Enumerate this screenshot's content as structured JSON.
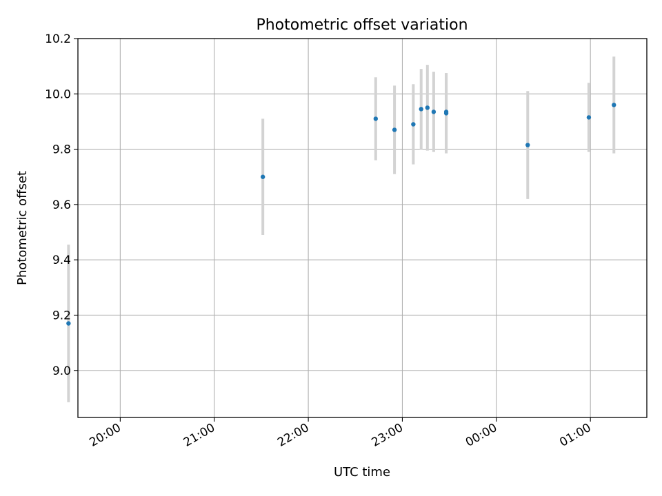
{
  "chart_data": {
    "type": "scatter",
    "title": "Photometric offset variation",
    "xlabel": "UTC time",
    "ylabel": "Photometric offset",
    "xlim": [
      "19:33",
      "01:36"
    ],
    "ylim": [
      8.83,
      10.2
    ],
    "x_ticks": [
      "20:00",
      "21:00",
      "22:00",
      "23:00",
      "00:00",
      "01:00"
    ],
    "y_ticks": [
      "9.0",
      "9.2",
      "9.4",
      "9.6",
      "9.8",
      "10.0",
      "10.2"
    ],
    "grid": true,
    "colors": {
      "point": "#1f77b4",
      "errorbar": "#d3d3d3",
      "grid": "#b0b0b0"
    },
    "points": [
      {
        "x": "19:27",
        "y": 9.17,
        "err": 0.285
      },
      {
        "x": "21:31",
        "y": 9.7,
        "err": 0.21
      },
      {
        "x": "22:43",
        "y": 9.91,
        "err": 0.15
      },
      {
        "x": "22:55",
        "y": 9.87,
        "err": 0.16
      },
      {
        "x": "23:07",
        "y": 9.89,
        "err": 0.145
      },
      {
        "x": "23:12",
        "y": 9.945,
        "err": 0.145
      },
      {
        "x": "23:16",
        "y": 9.95,
        "err": 0.155
      },
      {
        "x": "23:20",
        "y": 9.935,
        "err": 0.145
      },
      {
        "x": "23:28",
        "y": 9.93,
        "err": 0.145
      },
      {
        "x": "23:28",
        "y": 9.935,
        "err": 0.14
      },
      {
        "x": "00:20",
        "y": 9.815,
        "err": 0.195
      },
      {
        "x": "00:59",
        "y": 9.915,
        "err": 0.125
      },
      {
        "x": "01:15",
        "y": 9.96,
        "err": 0.175
      }
    ]
  }
}
